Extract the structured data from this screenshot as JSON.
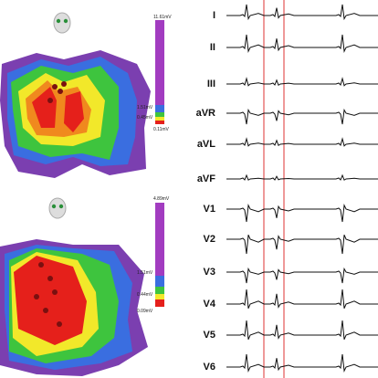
{
  "top_map": {
    "scale": [
      "11.61mV",
      "1.51mV",
      "0.45mV",
      "0.11mV"
    ]
  },
  "bottom_map": {
    "scale": [
      "4.89mV",
      "1.51mV",
      "0.44mV",
      "0.09mV"
    ]
  },
  "leads": [
    "I",
    "II",
    "III",
    "aVR",
    "aVL",
    "aVF",
    "V1",
    "V2",
    "V3",
    "V4",
    "V5",
    "V6"
  ]
}
